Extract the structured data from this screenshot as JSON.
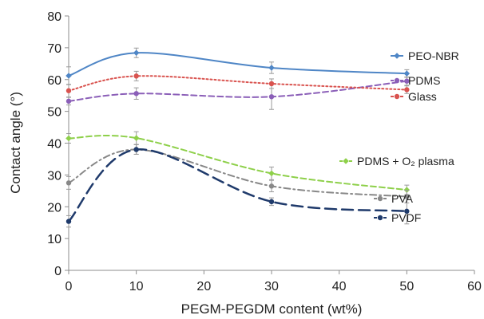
{
  "chart_data": {
    "type": "line",
    "title": "",
    "xlabel": "PEGM-PEGDM content (wt%)",
    "ylabel": "Contact angle (°)",
    "xlim": [
      0,
      60
    ],
    "ylim": [
      0,
      80
    ],
    "xticks": [
      0,
      10,
      20,
      30,
      40,
      50,
      60
    ],
    "yticks": [
      0,
      10,
      20,
      30,
      40,
      50,
      60,
      70,
      80
    ],
    "grid": false,
    "x": [
      0,
      10,
      30,
      50
    ],
    "series": [
      {
        "name": "PEO-NBR",
        "values": [
          61.2,
          68.4,
          63.7,
          61.9
        ],
        "errors": [
          2.8,
          1.5,
          1.8,
          1.2
        ],
        "color": "#4f86c6",
        "dash": "solid",
        "marker": "diamond",
        "width": 2
      },
      {
        "name": "PDMS",
        "values": [
          53.2,
          55.6,
          54.6,
          59.5
        ],
        "errors": [
          1.2,
          1.8,
          4.0,
          1.3
        ],
        "color": "#8b5fb8",
        "dash": "dash",
        "marker": "circle",
        "width": 2
      },
      {
        "name": "Glass",
        "values": [
          56.5,
          61.1,
          58.7,
          56.8
        ],
        "errors": [
          2.0,
          1.5,
          1.5,
          1.2
        ],
        "color": "#d9534f",
        "dash": "dot",
        "marker": "circle",
        "width": 2
      },
      {
        "name": "PDMS + O₂ plasma",
        "values": [
          41.5,
          41.6,
          30.5,
          25.3
        ],
        "errors": [
          1.5,
          2.0,
          2.0,
          1.5
        ],
        "color": "#8ed04a",
        "dash": "dash",
        "marker": "diamond",
        "width": 2
      },
      {
        "name": "PVA",
        "values": [
          27.5,
          38.0,
          26.5,
          23.2
        ],
        "errors": [
          2.0,
          1.5,
          1.8,
          2.0
        ],
        "color": "#888888",
        "dash": "dashdot",
        "marker": "circle",
        "width": 2
      },
      {
        "name": "PVDF",
        "values": [
          15.4,
          38.0,
          21.6,
          18.6
        ],
        "errors": [
          1.8,
          1.5,
          1.2,
          4.0
        ],
        "color": "#1f3a6b",
        "dash": "longdash",
        "marker": "circle",
        "width": 2.5
      }
    ]
  }
}
